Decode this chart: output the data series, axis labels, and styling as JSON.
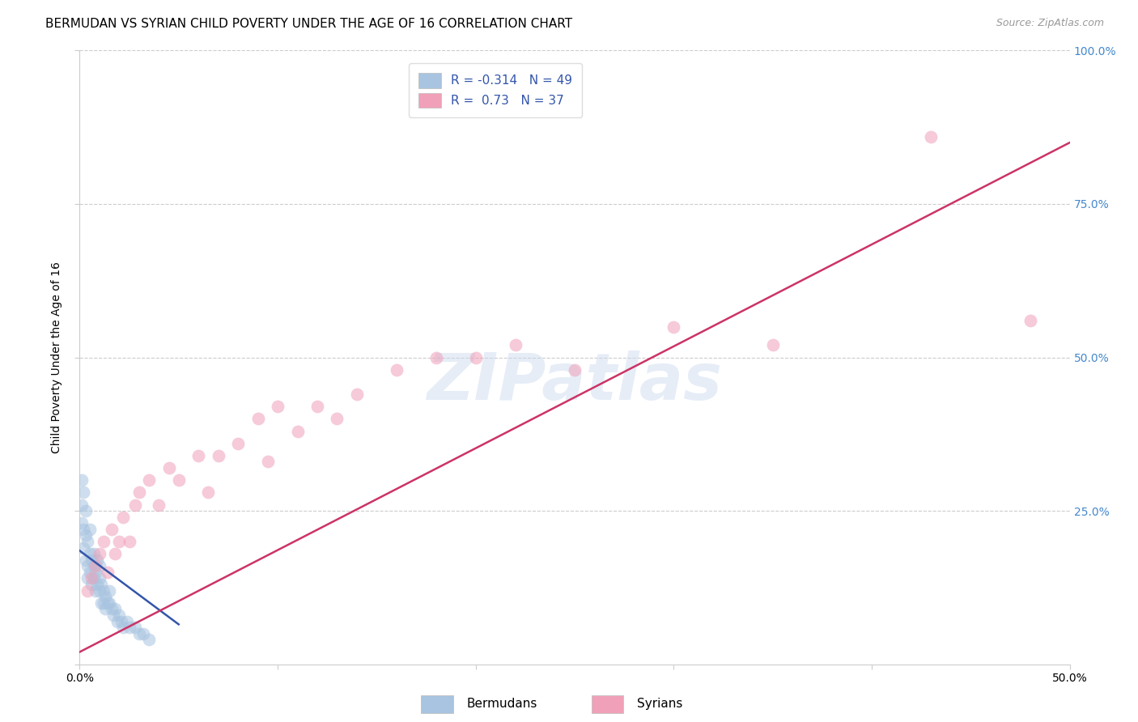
{
  "title": "BERMUDAN VS SYRIAN CHILD POVERTY UNDER THE AGE OF 16 CORRELATION CHART",
  "source": "Source: ZipAtlas.com",
  "ylabel": "Child Poverty Under the Age of 16",
  "watermark": "ZIPatlas",
  "xlim": [
    0,
    0.5
  ],
  "ylim": [
    0,
    1.0
  ],
  "bermudans_R": -0.314,
  "bermudans_N": 49,
  "syrians_R": 0.73,
  "syrians_N": 37,
  "bermudans_color": "#a8c4e0",
  "bermudans_edge_color": "#7aaacf",
  "bermudans_line_color": "#3355aa",
  "syrians_color": "#f0a0b8",
  "syrians_edge_color": "#dd7799",
  "syrians_line_color": "#cc3366",
  "dot_size": 130,
  "dot_alpha": 0.55,
  "bermudans_x": [
    0.001,
    0.001,
    0.001,
    0.002,
    0.002,
    0.002,
    0.003,
    0.003,
    0.003,
    0.004,
    0.004,
    0.004,
    0.005,
    0.005,
    0.005,
    0.006,
    0.006,
    0.007,
    0.007,
    0.007,
    0.008,
    0.008,
    0.009,
    0.009,
    0.01,
    0.01,
    0.01,
    0.011,
    0.011,
    0.012,
    0.012,
    0.013,
    0.013,
    0.014,
    0.015,
    0.015,
    0.016,
    0.017,
    0.018,
    0.019,
    0.02,
    0.021,
    0.022,
    0.024,
    0.025,
    0.028,
    0.03,
    0.032,
    0.035
  ],
  "bermudans_y": [
    0.3,
    0.26,
    0.23,
    0.28,
    0.22,
    0.19,
    0.25,
    0.21,
    0.17,
    0.2,
    0.16,
    0.14,
    0.22,
    0.18,
    0.15,
    0.17,
    0.13,
    0.18,
    0.16,
    0.14,
    0.15,
    0.12,
    0.17,
    0.13,
    0.16,
    0.14,
    0.12,
    0.13,
    0.1,
    0.12,
    0.1,
    0.11,
    0.09,
    0.1,
    0.12,
    0.1,
    0.09,
    0.08,
    0.09,
    0.07,
    0.08,
    0.07,
    0.06,
    0.07,
    0.06,
    0.06,
    0.05,
    0.05,
    0.04
  ],
  "syrians_x": [
    0.004,
    0.006,
    0.008,
    0.01,
    0.012,
    0.014,
    0.016,
    0.018,
    0.02,
    0.022,
    0.025,
    0.028,
    0.03,
    0.035,
    0.04,
    0.045,
    0.05,
    0.06,
    0.065,
    0.07,
    0.08,
    0.09,
    0.095,
    0.1,
    0.11,
    0.12,
    0.13,
    0.14,
    0.16,
    0.18,
    0.2,
    0.22,
    0.25,
    0.3,
    0.35,
    0.43,
    0.48
  ],
  "syrians_y": [
    0.12,
    0.14,
    0.16,
    0.18,
    0.2,
    0.15,
    0.22,
    0.18,
    0.2,
    0.24,
    0.2,
    0.26,
    0.28,
    0.3,
    0.26,
    0.32,
    0.3,
    0.34,
    0.28,
    0.34,
    0.36,
    0.4,
    0.33,
    0.42,
    0.38,
    0.42,
    0.4,
    0.44,
    0.48,
    0.5,
    0.5,
    0.52,
    0.48,
    0.55,
    0.52,
    0.86,
    0.56
  ],
  "bermudans_line_x": [
    0.0,
    0.05
  ],
  "bermudans_line_y": [
    0.185,
    0.065
  ],
  "syrians_line_x": [
    0.0,
    0.5
  ],
  "syrians_line_y": [
    0.02,
    0.85
  ],
  "background_color": "#ffffff",
  "grid_color": "#cccccc",
  "title_fontsize": 11,
  "label_fontsize": 10,
  "tick_fontsize": 10,
  "legend_fontsize": 11,
  "source_fontsize": 9,
  "right_tick_color": "#4488cc"
}
